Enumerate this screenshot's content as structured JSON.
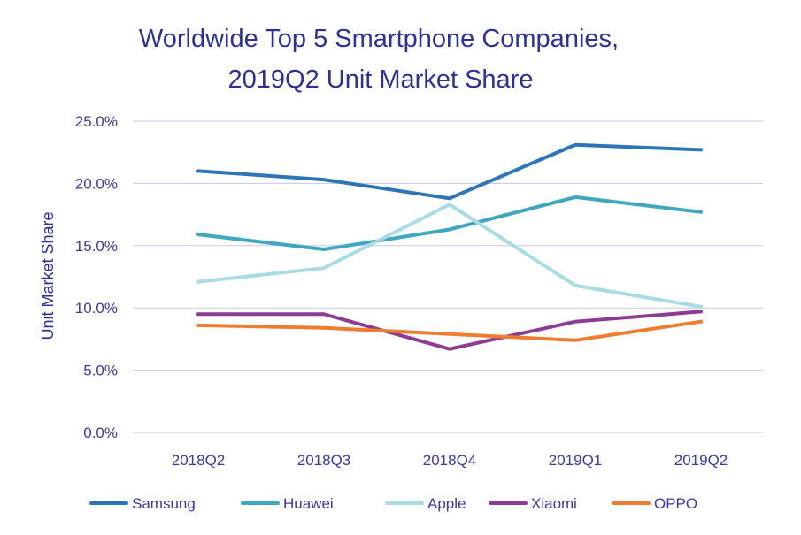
{
  "chart_data": {
    "type": "line",
    "title_lines": [
      "Worldwide Top 5 Smartphone Companies,",
      "2019Q2 Unit Market Share"
    ],
    "xlabel": "",
    "ylabel": "Unit Market Share",
    "categories": [
      "2018Q2",
      "2018Q3",
      "2018Q4",
      "2019Q1",
      "2019Q2"
    ],
    "ylim": [
      0,
      25
    ],
    "ytick_values": [
      0,
      5,
      10,
      15,
      20,
      25
    ],
    "ytick_labels": [
      "0.0%",
      "5.0%",
      "10.0%",
      "15.0%",
      "20.0%",
      "25.0%"
    ],
    "grid": true,
    "legend_position": "bottom",
    "series": [
      {
        "name": "Samsung",
        "color": "#2e75b6",
        "values": [
          21.0,
          20.3,
          18.8,
          23.1,
          22.7
        ]
      },
      {
        "name": "Huawei",
        "color": "#3fa7bf",
        "values": [
          15.9,
          14.7,
          16.3,
          18.9,
          17.7
        ]
      },
      {
        "name": "Apple",
        "color": "#a9dbe6",
        "values": [
          12.1,
          13.2,
          18.3,
          11.8,
          10.1
        ]
      },
      {
        "name": "Xiaomi",
        "color": "#8e3c93",
        "values": [
          9.5,
          9.5,
          6.7,
          8.9,
          9.7
        ]
      },
      {
        "name": "OPPO",
        "color": "#ed7d31",
        "values": [
          8.6,
          8.4,
          7.9,
          7.4,
          8.9
        ]
      }
    ]
  }
}
